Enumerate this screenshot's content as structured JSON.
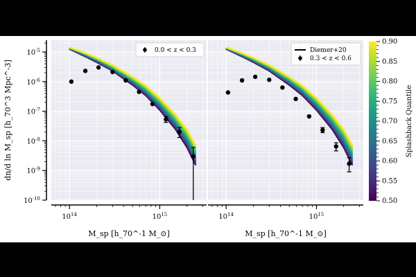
{
  "figure": {
    "xlabel": "M_sp [h_70^-1 M_⊙]",
    "ylabel": "dn/d ln M_sp [h_70^3 Mpc^-3]",
    "colorbar": {
      "label": "Splashback Quantile",
      "range": [
        0.5,
        0.9
      ],
      "ticks": [
        "0.50",
        "0.55",
        "0.60",
        "0.65",
        "0.70",
        "0.75",
        "0.80",
        "0.85",
        "0.90"
      ],
      "colormap": "viridis",
      "colors": [
        "#440154",
        "#482878",
        "#3e4a89",
        "#31688e",
        "#26828e",
        "#1f9e89",
        "#35b779",
        "#6ece58",
        "#b5de2b",
        "#fde725"
      ]
    }
  },
  "legend_model": "Diemer+20",
  "chart_data": [
    {
      "type": "scatter",
      "panel": "left",
      "xscale": "log",
      "yscale": "log",
      "xlim": [
        63000000000000.0,
        3300000000000000.0
      ],
      "ylim": [
        1e-10,
        2.5e-05
      ],
      "x_ticks": [
        "10^14",
        "10^15"
      ],
      "y_ticks": [
        "10^-10",
        "10^-9",
        "10^-8",
        "10^-7",
        "10^-6",
        "10^-5"
      ],
      "grid": true,
      "legend_position": "top-right",
      "series": [
        {
          "name": "0.0 < z < 0.3",
          "points": [
            {
              "x": 105000000000000.0,
              "y": 1e-06
            },
            {
              "x": 150000000000000.0,
              "y": 2.3e-06
            },
            {
              "x": 210000000000000.0,
              "y": 3e-06
            },
            {
              "x": 300000000000000.0,
              "y": 2.1e-06
            },
            {
              "x": 420000000000000.0,
              "y": 1.1e-06
            },
            {
              "x": 590000000000000.0,
              "y": 4.5e-07
            },
            {
              "x": 830000000000000.0,
              "y": 1.75e-07
            },
            {
              "x": 1170000000000000.0,
              "y": 5.3e-08,
              "lo": 4.2e-08,
              "hi": 6.6e-08
            },
            {
              "x": 1650000000000000.0,
              "y": 2e-08,
              "lo": 1.3e-08,
              "hi": 2.8e-08
            },
            {
              "x": 2350000000000000.0,
              "y": 3e-09,
              "lo": 1e-10,
              "hi": 6e-09
            }
          ]
        }
      ]
    },
    {
      "type": "scatter",
      "panel": "right",
      "xscale": "log",
      "yscale": "log",
      "xlim": [
        63000000000000.0,
        3300000000000000.0
      ],
      "ylim": [
        1e-10,
        2.5e-05
      ],
      "x_ticks": [
        "10^14",
        "10^15"
      ],
      "grid": true,
      "legend_position": "top-right",
      "series": [
        {
          "name": "0.3 < z < 0.6",
          "points": [
            {
              "x": 105000000000000.0,
              "y": 4.3e-07
            },
            {
              "x": 150000000000000.0,
              "y": 1.1e-06
            },
            {
              "x": 210000000000000.0,
              "y": 1.45e-06
            },
            {
              "x": 300000000000000.0,
              "y": 1.15e-06
            },
            {
              "x": 420000000000000.0,
              "y": 6.3e-07
            },
            {
              "x": 590000000000000.0,
              "y": 2.6e-07
            },
            {
              "x": 830000000000000.0,
              "y": 6.7e-08
            },
            {
              "x": 1170000000000000.0,
              "y": 2.3e-08,
              "lo": 1.9e-08,
              "hi": 2.8e-08
            },
            {
              "x": 1650000000000000.0,
              "y": 6.5e-09,
              "lo": 4.6e-09,
              "hi": 8.6e-09
            },
            {
              "x": 2300000000000000.0,
              "y": 1.7e-09,
              "lo": 9e-10,
              "hi": 2.7e-09
            }
          ]
        }
      ]
    }
  ],
  "model_curves": {
    "name": "Diemer+20",
    "quantiles": [
      0.5,
      0.9
    ],
    "x": [
      100000000000000.0,
      150000000000000.0,
      200000000000000.0,
      300000000000000.0,
      500000000000000.0,
      700000000000000.0,
      1000000000000000.0,
      1500000000000000.0,
      2000000000000000.0,
      2500000000000000.0
    ],
    "y_q050": [
      1.25e-05,
      7e-06,
      4.5e-06,
      2.3e-06,
      7.7e-07,
      3.4e-07,
      1.1e-07,
      2.4e-08,
      6e-09,
      1.5e-09
    ],
    "y_q090": [
      1.45e-05,
      9.2e-06,
      6.4e-06,
      3.6e-06,
      1.45e-06,
      7.2e-07,
      2.8e-07,
      7.5e-08,
      2.4e-08,
      7e-09
    ]
  }
}
